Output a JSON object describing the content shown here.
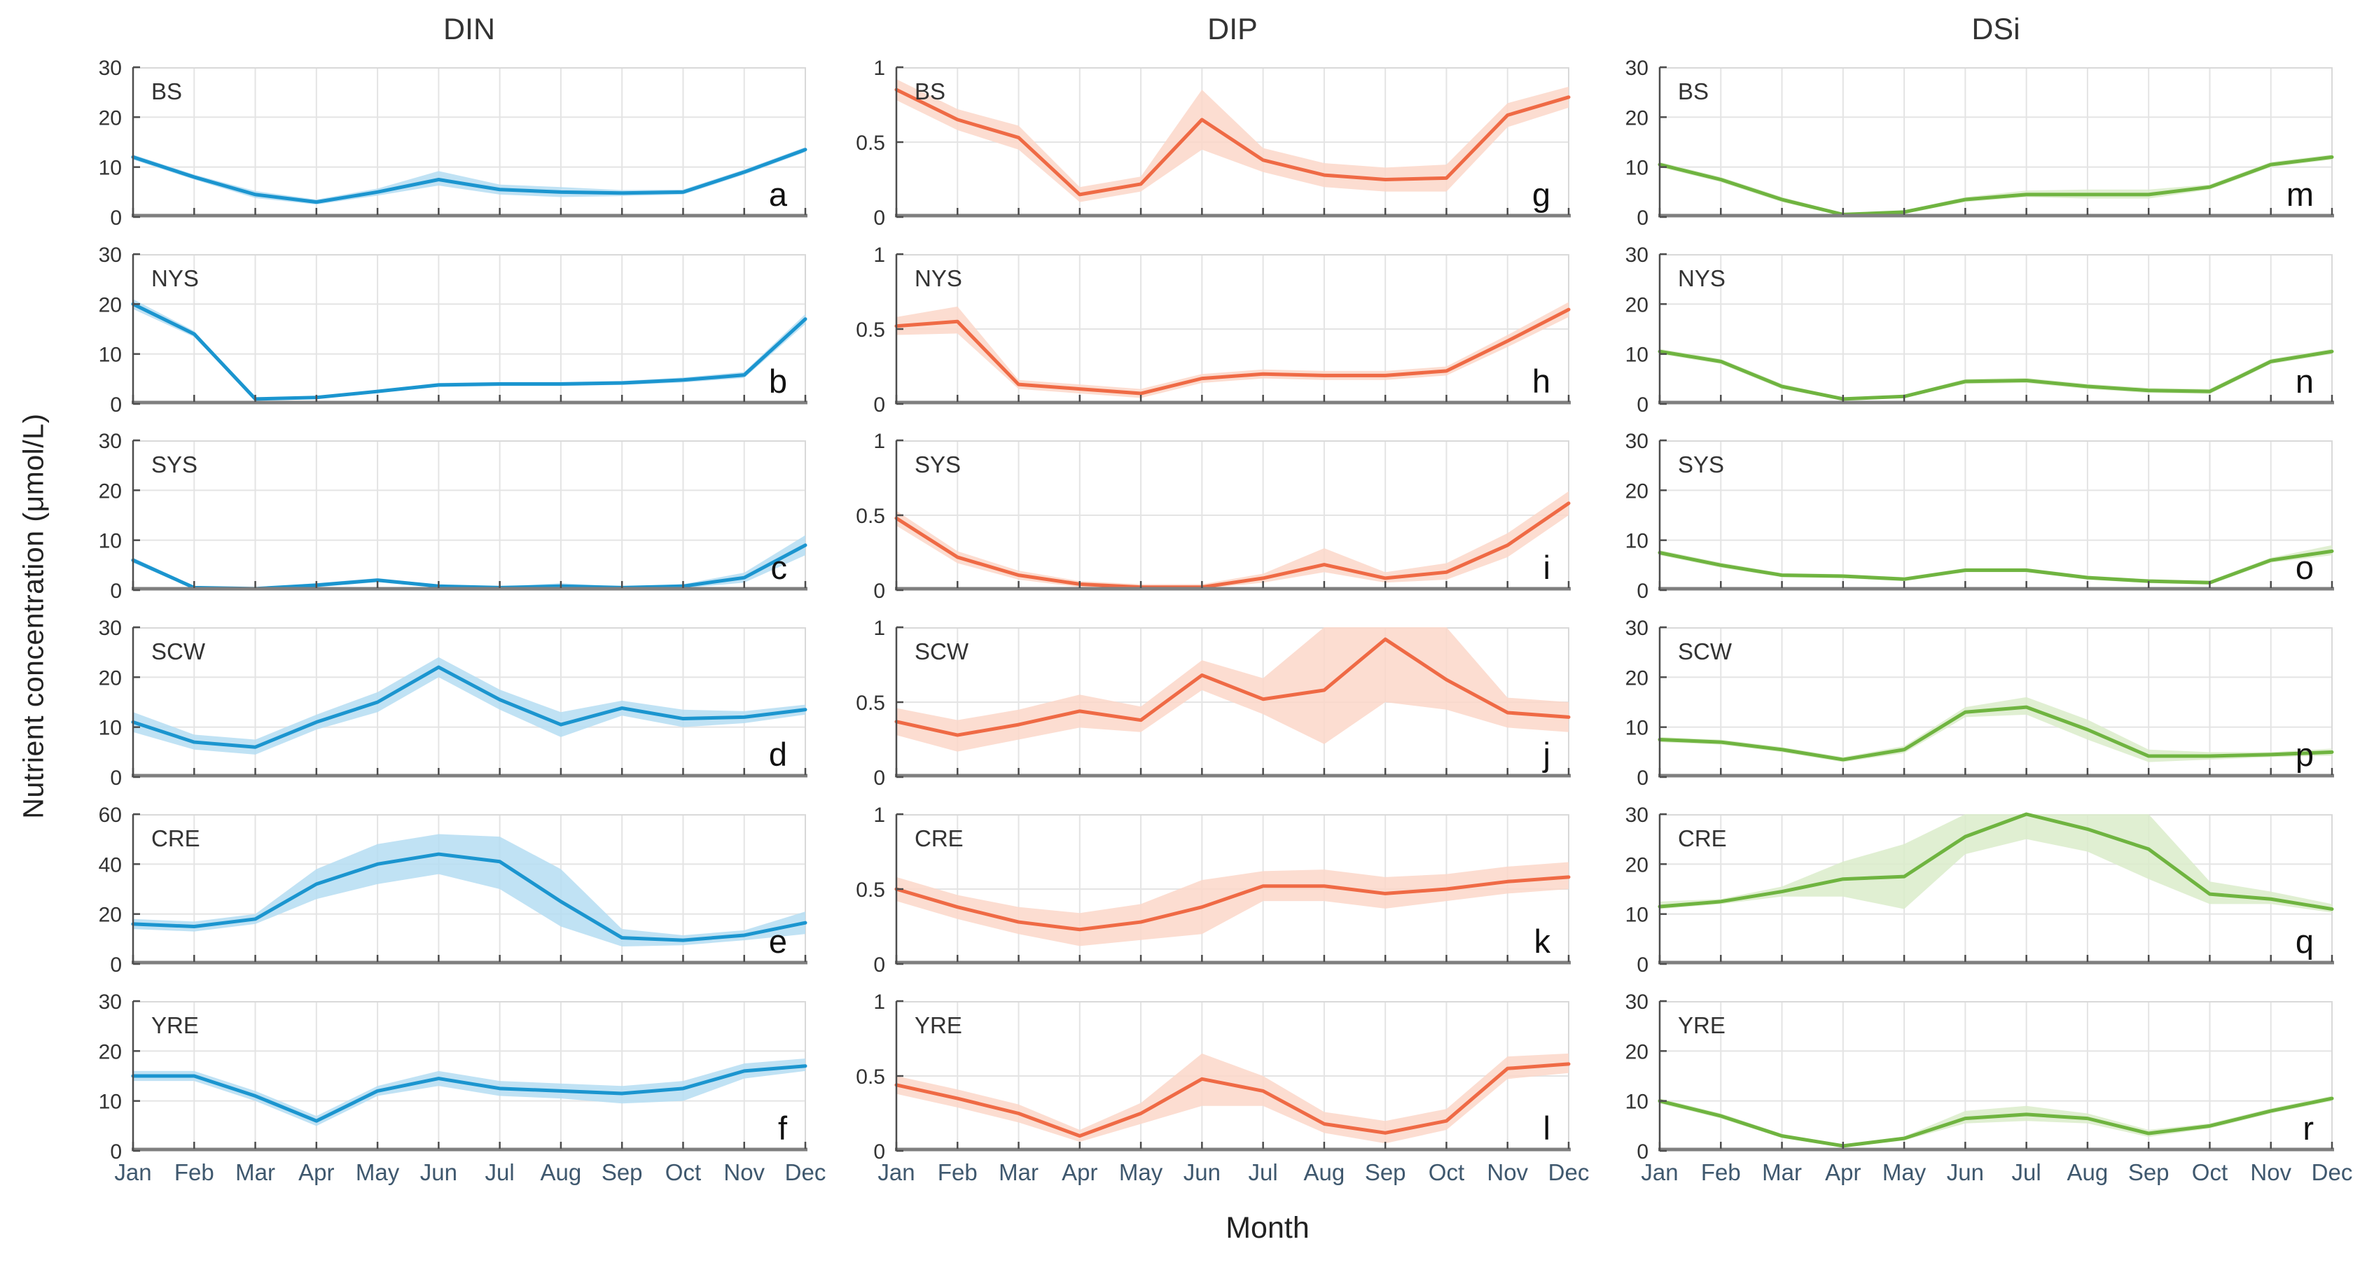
{
  "chart_data": {
    "type": "line",
    "ylabel": "Nutrient concentration (μmol/L)",
    "xlabel": "Month",
    "months": [
      "Jan",
      "Feb",
      "Mar",
      "Apr",
      "May",
      "Jun",
      "Jul",
      "Aug",
      "Sep",
      "Oct",
      "Nov",
      "Dec"
    ],
    "grid": true,
    "legend": "none",
    "columns": [
      {
        "title": "DIN",
        "line_color": "#1b95cf",
        "band_color": "#b5ddf2",
        "panels": [
          {
            "station": "BS",
            "letter": "a",
            "ylim": [
              0,
              30
            ],
            "yticks": [
              0,
              10,
              20,
              30
            ],
            "mean": [
              12,
              8,
              4.5,
              3,
              5,
              7.5,
              5.5,
              5,
              4.8,
              5,
              9,
              13.5
            ],
            "lower": [
              11.5,
              7.5,
              3.8,
              2.5,
              4.3,
              6.3,
              4.5,
              4,
              4.2,
              4.5,
              8.5,
              13
            ],
            "upper": [
              12.5,
              8.5,
              5.2,
              3.5,
              5.7,
              9.2,
              6.5,
              6,
              5.4,
              5.5,
              9.5,
              14
            ]
          },
          {
            "station": "NYS",
            "letter": "b",
            "ylim": [
              0,
              30
            ],
            "yticks": [
              0,
              10,
              20,
              30
            ],
            "mean": [
              20,
              14,
              1,
              1.3,
              2.5,
              3.8,
              4,
              4,
              4.2,
              4.8,
              5.8,
              17
            ],
            "lower": [
              19,
              13.4,
              0.7,
              1,
              2.2,
              3.4,
              3.6,
              3.6,
              3.8,
              4.3,
              5.2,
              16
            ],
            "upper": [
              21,
              14.6,
              1.3,
              1.6,
              2.8,
              4.2,
              4.4,
              4.4,
              4.6,
              5.3,
              6.4,
              18
            ]
          },
          {
            "station": "SYS",
            "letter": "c",
            "ylim": [
              0,
              30
            ],
            "yticks": [
              0,
              10,
              20,
              30
            ],
            "mean": [
              6,
              0.5,
              0.3,
              1,
              2,
              0.8,
              0.5,
              0.8,
              0.5,
              0.8,
              2.5,
              9
            ],
            "lower": [
              5.5,
              0.2,
              0.1,
              0.6,
              1.6,
              0.5,
              0.3,
              0.4,
              0.3,
              0.4,
              1.5,
              7
            ],
            "upper": [
              6.5,
              0.8,
              0.5,
              1.4,
              2.4,
              1.1,
              0.7,
              1.4,
              0.7,
              1.2,
              3.5,
              11
            ]
          },
          {
            "station": "SCW",
            "letter": "d",
            "ylim": [
              0,
              30
            ],
            "yticks": [
              0,
              10,
              20,
              30
            ],
            "mean": [
              11,
              7,
              6,
              11,
              15,
              22,
              15.5,
              10.5,
              13.8,
              11.7,
              12,
              13.5
            ],
            "lower": [
              9,
              5.5,
              4.5,
              9.5,
              13,
              20,
              13.5,
              8,
              12.3,
              10,
              10.8,
              12.5
            ],
            "upper": [
              13,
              8.5,
              7.5,
              12.5,
              17,
              24,
              17.5,
              13,
              15.3,
              13.5,
              13.2,
              14.5
            ]
          },
          {
            "station": "CRE",
            "letter": "e",
            "ylim": [
              0,
              60
            ],
            "yticks": [
              0,
              20,
              40,
              60
            ],
            "mean": [
              16,
              15,
              18,
              32,
              40,
              44,
              41,
              25,
              10.5,
              9.5,
              11.5,
              16.5
            ],
            "lower": [
              14,
              13,
              16,
              26,
              32,
              36,
              30,
              15,
              7,
              7.5,
              9.5,
              12
            ],
            "upper": [
              18,
              17,
              20,
              38,
              48,
              52,
              51,
              38,
              14,
              11.5,
              13.5,
              21
            ]
          },
          {
            "station": "YRE",
            "letter": "f",
            "ylim": [
              0,
              30
            ],
            "yticks": [
              0,
              10,
              20,
              30
            ],
            "mean": [
              15,
              15,
              11,
              6,
              12,
              14.5,
              12.5,
              12,
              11.5,
              12.5,
              16,
              17
            ],
            "lower": [
              14,
              14,
              10,
              5,
              11,
              13,
              11,
              10.5,
              9.5,
              10,
              14.5,
              16
            ],
            "upper": [
              16,
              16,
              12,
              7,
              13,
              16,
              14,
              13.5,
              13,
              14,
              17.5,
              18.5
            ]
          }
        ]
      },
      {
        "title": "DIP",
        "line_color": "#ef6a45",
        "band_color": "#fbd7c9",
        "panels": [
          {
            "station": "BS",
            "letter": "g",
            "ylim": [
              0,
              1
            ],
            "yticks": [
              0,
              0.5,
              1
            ],
            "mean": [
              0.85,
              0.65,
              0.53,
              0.15,
              0.22,
              0.65,
              0.38,
              0.28,
              0.25,
              0.26,
              0.68,
              0.8
            ],
            "lower": [
              0.78,
              0.58,
              0.45,
              0.1,
              0.17,
              0.45,
              0.3,
              0.2,
              0.17,
              0.17,
              0.6,
              0.73
            ],
            "upper": [
              0.92,
              0.72,
              0.61,
              0.2,
              0.27,
              0.85,
              0.46,
              0.36,
              0.33,
              0.35,
              0.76,
              0.87
            ]
          },
          {
            "station": "NYS",
            "letter": "h",
            "ylim": [
              0,
              1
            ],
            "yticks": [
              0,
              0.5,
              1
            ],
            "mean": [
              0.52,
              0.55,
              0.13,
              0.1,
              0.07,
              0.17,
              0.2,
              0.19,
              0.19,
              0.22,
              0.42,
              0.63
            ],
            "lower": [
              0.46,
              0.47,
              0.1,
              0.07,
              0.04,
              0.14,
              0.17,
              0.16,
              0.16,
              0.19,
              0.38,
              0.58
            ],
            "upper": [
              0.58,
              0.65,
              0.16,
              0.13,
              0.1,
              0.2,
              0.23,
              0.22,
              0.22,
              0.25,
              0.46,
              0.68
            ]
          },
          {
            "station": "SYS",
            "letter": "i",
            "ylim": [
              0,
              1
            ],
            "yticks": [
              0,
              0.5,
              1
            ],
            "mean": [
              0.48,
              0.22,
              0.1,
              0.04,
              0.02,
              0.02,
              0.08,
              0.17,
              0.08,
              0.12,
              0.3,
              0.58
            ],
            "lower": [
              0.43,
              0.18,
              0.07,
              0.02,
              0.01,
              0.01,
              0.05,
              0.12,
              0.05,
              0.07,
              0.22,
              0.5
            ],
            "upper": [
              0.53,
              0.26,
              0.13,
              0.06,
              0.04,
              0.04,
              0.11,
              0.28,
              0.12,
              0.18,
              0.38,
              0.66
            ]
          },
          {
            "station": "SCW",
            "letter": "j",
            "ylim": [
              0,
              1
            ],
            "yticks": [
              0,
              0.5,
              1
            ],
            "mean": [
              0.37,
              0.28,
              0.35,
              0.44,
              0.38,
              0.68,
              0.52,
              0.58,
              0.92,
              0.65,
              0.43,
              0.4
            ],
            "lower": [
              0.28,
              0.17,
              0.25,
              0.33,
              0.3,
              0.58,
              0.42,
              0.22,
              0.5,
              0.45,
              0.33,
              0.3
            ],
            "upper": [
              0.46,
              0.38,
              0.45,
              0.55,
              0.47,
              0.78,
              0.66,
              1.0,
              1.0,
              1.0,
              0.53,
              0.5
            ]
          },
          {
            "station": "CRE",
            "letter": "k",
            "ylim": [
              0,
              1
            ],
            "yticks": [
              0,
              0.5,
              1
            ],
            "mean": [
              0.5,
              0.38,
              0.28,
              0.23,
              0.28,
              0.38,
              0.52,
              0.52,
              0.47,
              0.5,
              0.55,
              0.58
            ],
            "lower": [
              0.42,
              0.3,
              0.2,
              0.12,
              0.16,
              0.2,
              0.42,
              0.42,
              0.37,
              0.42,
              0.47,
              0.5
            ],
            "upper": [
              0.58,
              0.46,
              0.38,
              0.34,
              0.4,
              0.56,
              0.62,
              0.63,
              0.58,
              0.6,
              0.65,
              0.68
            ]
          },
          {
            "station": "YRE",
            "letter": "l",
            "ylim": [
              0,
              1
            ],
            "yticks": [
              0,
              0.5,
              1
            ],
            "mean": [
              0.44,
              0.35,
              0.25,
              0.1,
              0.25,
              0.48,
              0.4,
              0.18,
              0.12,
              0.2,
              0.55,
              0.58
            ],
            "lower": [
              0.38,
              0.29,
              0.19,
              0.06,
              0.18,
              0.3,
              0.3,
              0.12,
              0.05,
              0.14,
              0.48,
              0.52
            ],
            "upper": [
              0.5,
              0.41,
              0.31,
              0.14,
              0.32,
              0.65,
              0.5,
              0.26,
              0.2,
              0.28,
              0.63,
              0.65
            ]
          }
        ]
      },
      {
        "title": "DSi",
        "line_color": "#6fb440",
        "band_color": "#daecca",
        "panels": [
          {
            "station": "BS",
            "letter": "m",
            "ylim": [
              0,
              30
            ],
            "yticks": [
              0,
              10,
              20,
              30
            ],
            "mean": [
              10.5,
              7.5,
              3.5,
              0.5,
              1,
              3.5,
              4.5,
              4.5,
              4.5,
              6,
              10.5,
              12
            ],
            "lower": [
              10,
              7,
              3,
              0.2,
              0.7,
              3,
              4,
              3.7,
              3.7,
              5.5,
              10,
              11.5
            ],
            "upper": [
              11,
              8,
              4,
              0.8,
              1.3,
              4,
              5.3,
              5.5,
              5.5,
              6.5,
              11,
              12.5
            ]
          },
          {
            "station": "NYS",
            "letter": "n",
            "ylim": [
              0,
              30
            ],
            "yticks": [
              0,
              10,
              20,
              30
            ],
            "mean": [
              10.5,
              8.5,
              3.5,
              1,
              1.5,
              4.5,
              4.7,
              3.5,
              2.7,
              2.5,
              8.5,
              10.5
            ],
            "lower": [
              10,
              8,
              3,
              0.7,
              1.2,
              4,
              4.2,
              3,
              2.2,
              2,
              8,
              10
            ],
            "upper": [
              11,
              9,
              4,
              1.3,
              1.8,
              5,
              5.2,
              4,
              3.2,
              3,
              9,
              11
            ]
          },
          {
            "station": "SYS",
            "letter": "o",
            "ylim": [
              0,
              30
            ],
            "yticks": [
              0,
              10,
              20,
              30
            ],
            "mean": [
              7.5,
              5,
              3,
              2.8,
              2.2,
              4,
              4,
              2.5,
              1.8,
              1.5,
              6,
              7.8
            ],
            "lower": [
              7,
              4.5,
              2.6,
              2.4,
              1.8,
              3.6,
              3.6,
              2.1,
              1.4,
              1.1,
              5.5,
              7
            ],
            "upper": [
              8,
              5.5,
              3.4,
              3.2,
              2.6,
              4.4,
              4.4,
              2.9,
              2.2,
              1.9,
              6.5,
              9
            ]
          },
          {
            "station": "SCW",
            "letter": "p",
            "ylim": [
              0,
              30
            ],
            "yticks": [
              0,
              10,
              20,
              30
            ],
            "mean": [
              7.5,
              7,
              5.5,
              3.5,
              5.5,
              13,
              14,
              9.5,
              4.2,
              4.2,
              4.5,
              5
            ],
            "lower": [
              7,
              6.5,
              5,
              3,
              4.8,
              12,
              12.5,
              7.5,
              3,
              3.5,
              4,
              4.3
            ],
            "upper": [
              8,
              7.5,
              6,
              4,
              6.2,
              14,
              16,
              11.5,
              5.5,
              5,
              5,
              5.7
            ]
          },
          {
            "station": "CRE",
            "letter": "q",
            "ylim": [
              0,
              30
            ],
            "yticks": [
              0,
              10,
              20,
              30
            ],
            "mean": [
              11.5,
              12.5,
              14.5,
              17,
              17.5,
              25.5,
              30,
              27,
              23,
              14,
              13,
              11
            ],
            "lower": [
              11,
              12,
              13.5,
              13.5,
              11,
              22,
              25,
              22.5,
              17,
              12,
              12,
              10.3
            ],
            "upper": [
              12.5,
              13,
              15.5,
              20.5,
              24,
              30,
              30,
              30,
              30,
              16.5,
              14.5,
              12
            ]
          },
          {
            "station": "YRE",
            "letter": "r",
            "ylim": [
              0,
              30
            ],
            "yticks": [
              0,
              10,
              20,
              30
            ],
            "mean": [
              10,
              7,
              3,
              1,
              2.5,
              6.5,
              7.3,
              6.5,
              3.5,
              5,
              8,
              10.5
            ],
            "lower": [
              9.5,
              6.5,
              2.6,
              0.7,
              2.1,
              5.5,
              6,
              5.5,
              2.8,
              4.5,
              7.5,
              10
            ],
            "upper": [
              10.5,
              7.5,
              3.4,
              1.3,
              2.9,
              8,
              9,
              7.5,
              4.2,
              5.5,
              8.5,
              11
            ]
          }
        ]
      }
    ]
  }
}
